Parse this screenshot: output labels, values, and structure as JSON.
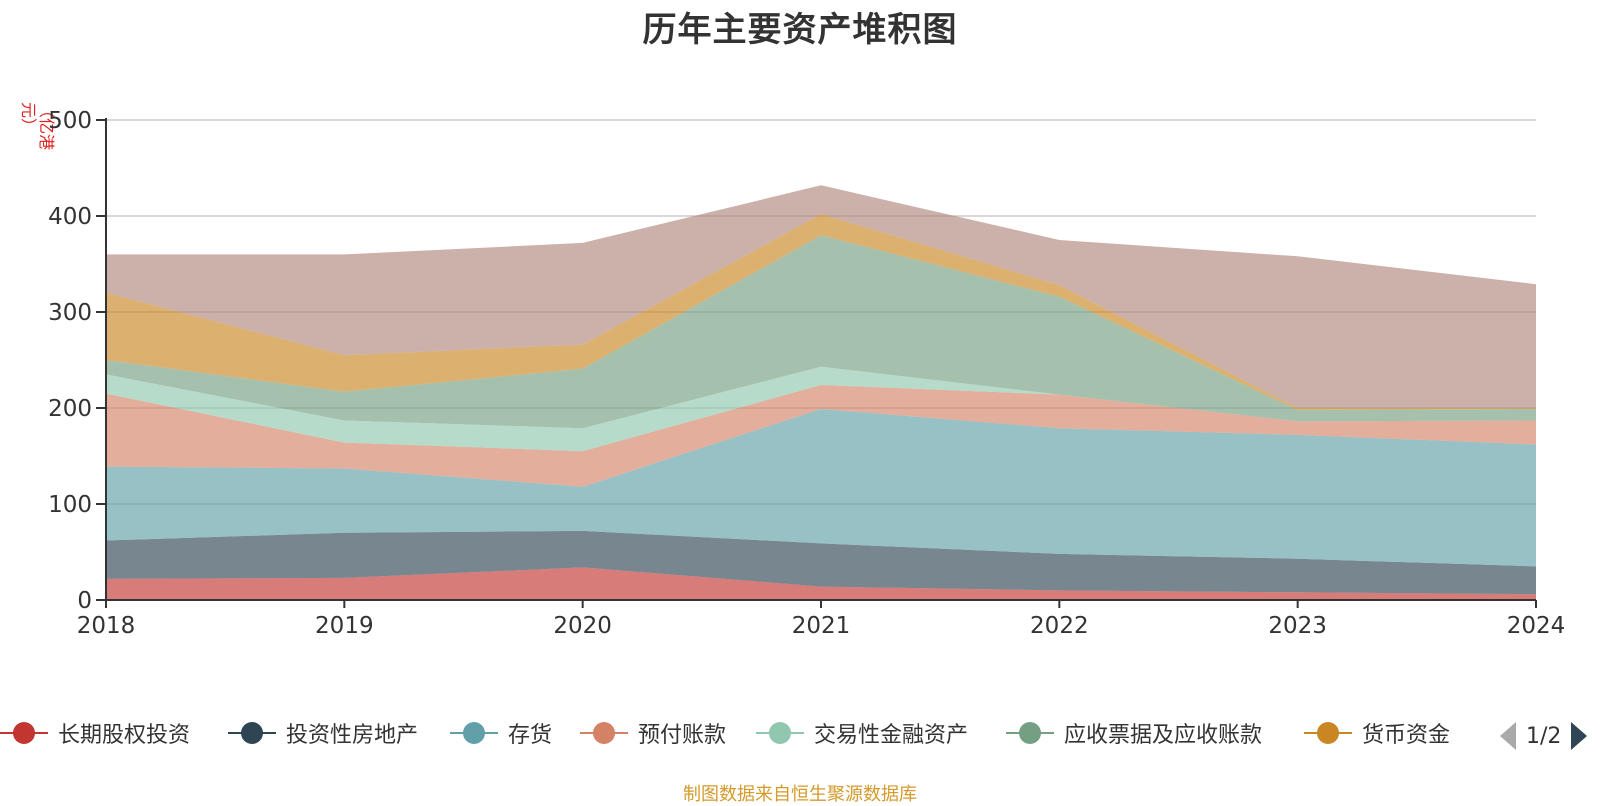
{
  "title": "历年主要资产堆积图",
  "y_axis_unit": "（亿港元）",
  "footer_text": "制图数据来自恒生聚源数据库",
  "pager": {
    "text": "1/2"
  },
  "legend": [
    {
      "label": "长期股权投资",
      "color": "#c23531"
    },
    {
      "label": "投资性房地产",
      "color": "#2f4554"
    },
    {
      "label": "存货",
      "color": "#61a0a8"
    },
    {
      "label": "预付账款",
      "color": "#d48265"
    },
    {
      "label": "交易性金融资产",
      "color": "#91c7ae"
    },
    {
      "label": "应收票据及应收账款",
      "color": "#749f83"
    },
    {
      "label": "货币资金",
      "color": "#ca8622"
    }
  ],
  "chart_data": {
    "type": "area",
    "stacked": true,
    "title": "历年主要资产堆积图",
    "x": [
      "2018",
      "2019",
      "2020",
      "2021",
      "2022",
      "2023",
      "2024"
    ],
    "ylabel": "（亿港元）",
    "ylim": [
      0,
      500
    ],
    "yticks": [
      0,
      100,
      200,
      300,
      400,
      500
    ],
    "grid": true,
    "legend_position": "bottom",
    "series": [
      {
        "name": "长期股权投资",
        "color": "#c23531",
        "values": [
          22,
          23,
          34,
          14,
          10,
          8,
          6
        ]
      },
      {
        "name": "投资性房地产",
        "color": "#2f4554",
        "values": [
          40,
          47,
          38,
          45,
          38,
          35,
          29
        ]
      },
      {
        "name": "存货",
        "color": "#61a0a8",
        "values": [
          77,
          67,
          46,
          140,
          131,
          129,
          127
        ]
      },
      {
        "name": "预付账款",
        "color": "#d48265",
        "values": [
          76,
          27,
          37,
          25,
          35,
          14,
          25
        ]
      },
      {
        "name": "交易性金融资产",
        "color": "#91c7ae",
        "values": [
          20,
          23,
          24,
          19,
          0,
          0,
          0
        ]
      },
      {
        "name": "应收票据及应收账款",
        "color": "#749f83",
        "values": [
          15,
          30,
          62,
          137,
          102,
          12,
          12
        ]
      },
      {
        "name": "货币资金",
        "color": "#ca8622",
        "values": [
          70,
          38,
          25,
          22,
          12,
          2,
          1
        ]
      },
      {
        "color": "#b1867d",
        "values": [
          40,
          105,
          106,
          30,
          47,
          158,
          129
        ]
      }
    ]
  }
}
